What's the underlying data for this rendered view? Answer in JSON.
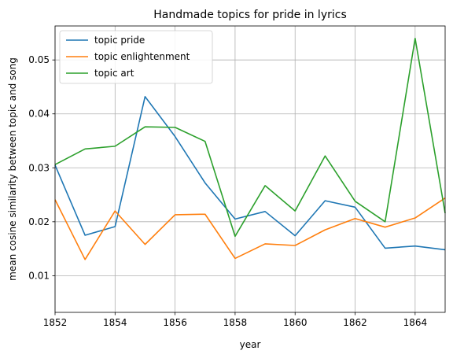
{
  "chart_data": {
    "type": "line",
    "title": "Handmade topics for pride in lyrics",
    "xlabel": "year",
    "ylabel": "mean cosine similarity between topic and song",
    "xlim": [
      1852,
      1865
    ],
    "ylim": [
      0.0032,
      0.0563
    ],
    "x": [
      1852,
      1853,
      1854,
      1855,
      1856,
      1857,
      1858,
      1859,
      1860,
      1861,
      1862,
      1863,
      1864,
      1865
    ],
    "x_ticks": [
      1852,
      1854,
      1856,
      1858,
      1860,
      1862,
      1864
    ],
    "y_ticks": [
      0.01,
      0.02,
      0.03,
      0.04,
      0.05
    ],
    "y_tick_labels": [
      "0.01",
      "0.02",
      "0.03",
      "0.04",
      "0.05"
    ],
    "grid": true,
    "legend_position": "top-left",
    "series": [
      {
        "name": "topic pride",
        "color": "#1f77b4",
        "values": [
          0.0305,
          0.0175,
          0.0191,
          0.0432,
          0.0358,
          0.0272,
          0.0205,
          0.0219,
          0.0174,
          0.0239,
          0.0227,
          0.0151,
          0.0155,
          0.0148
        ]
      },
      {
        "name": "topic enlightenment",
        "color": "#ff7f0e",
        "values": [
          0.0241,
          0.013,
          0.022,
          0.0158,
          0.0213,
          0.0214,
          0.0132,
          0.0159,
          0.0156,
          0.0185,
          0.0206,
          0.019,
          0.0207,
          0.0244
        ]
      },
      {
        "name": "topic art",
        "color": "#2ca02c",
        "values": [
          0.0306,
          0.0335,
          0.034,
          0.0376,
          0.0375,
          0.0349,
          0.0173,
          0.0267,
          0.022,
          0.0322,
          0.0238,
          0.02,
          0.054,
          0.0216
        ]
      }
    ]
  }
}
